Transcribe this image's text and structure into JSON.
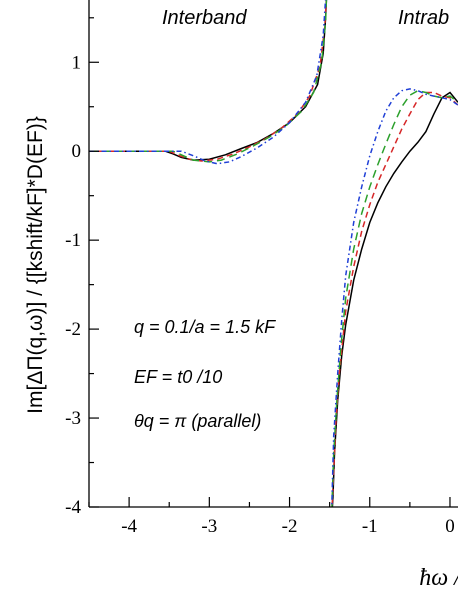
{
  "chart_data": {
    "type": "line",
    "xlim": [
      -4.5,
      0.1
    ],
    "ylim": [
      -4,
      1.7
    ],
    "x_ticks": [
      "-4",
      "-3",
      "-2",
      "-1",
      "0"
    ],
    "y_ticks": [
      "1",
      "0",
      "-1",
      "-2",
      "-3",
      "-4"
    ],
    "ylabel": "Im[ΔΠ(q,ω)] / {[kshift/kF]*D(EF)}",
    "xlabel": "ħω /",
    "annotations": {
      "interband": "Interband",
      "intraband": "Intrab",
      "q_line": "q = 0.1/a = 1.5 kF",
      "ef_line": "EF = t0 /10",
      "theta_line": "θq = π (parallel)"
    },
    "grid": false,
    "legend": "none",
    "series": [
      {
        "color": "#000000",
        "dash": "solid",
        "x": [
          -4.5,
          -3.55,
          -3.45,
          -3.35,
          -3.2,
          -3.0,
          -2.8,
          -2.6,
          -2.4,
          -2.2,
          -2.0,
          -1.8,
          -1.65,
          -1.58,
          -1.55,
          -1.53,
          -1.52
        ],
        "y": [
          0,
          0,
          -0.03,
          -0.07,
          -0.1,
          -0.09,
          -0.04,
          0.03,
          0.1,
          0.2,
          0.32,
          0.5,
          0.75,
          1.1,
          1.5,
          1.9,
          2.5
        ],
        "x2": [
          -1.48,
          -1.46,
          -1.44,
          -1.4,
          -1.35,
          -1.3,
          -1.2,
          -1.1,
          -1.0,
          -0.9,
          -0.8,
          -0.7,
          -0.6,
          -0.5,
          -0.4,
          -0.3,
          -0.2,
          -0.1,
          0.0,
          0.1
        ],
        "y2": [
          -4.2,
          -3.9,
          -3.4,
          -2.8,
          -2.3,
          -1.95,
          -1.45,
          -1.1,
          -0.8,
          -0.58,
          -0.4,
          -0.25,
          -0.12,
          0.0,
          0.1,
          0.22,
          0.42,
          0.6,
          0.66,
          0.55
        ]
      },
      {
        "color": "#d62728",
        "dash": "6,4",
        "x": [
          -4.5,
          -3.5,
          -3.4,
          -3.25,
          -3.1,
          -2.9,
          -2.7,
          -2.5,
          -2.3,
          -2.1,
          -1.9,
          -1.75,
          -1.62,
          -1.56,
          -1.53,
          -1.52
        ],
        "y": [
          0,
          0,
          -0.04,
          -0.09,
          -0.11,
          -0.09,
          -0.03,
          0.05,
          0.14,
          0.26,
          0.42,
          0.62,
          0.95,
          1.4,
          1.9,
          2.5
        ],
        "x2": [
          -1.48,
          -1.45,
          -1.42,
          -1.38,
          -1.3,
          -1.2,
          -1.1,
          -1.0,
          -0.9,
          -0.8,
          -0.7,
          -0.6,
          -0.5,
          -0.4,
          -0.3,
          -0.2,
          -0.1,
          0.0,
          0.1
        ],
        "y2": [
          -4.2,
          -3.6,
          -3.0,
          -2.5,
          -1.8,
          -1.3,
          -0.9,
          -0.6,
          -0.35,
          -0.15,
          0.05,
          0.25,
          0.42,
          0.58,
          0.66,
          0.66,
          0.62,
          0.6,
          0.52
        ]
      },
      {
        "color": "#2ca02c",
        "dash": "8,5",
        "x": [
          -4.5,
          -3.45,
          -3.35,
          -3.2,
          -3.0,
          -2.85,
          -2.65,
          -2.45,
          -2.25,
          -2.05,
          -1.85,
          -1.7,
          -1.6,
          -1.55,
          -1.53,
          -1.52
        ],
        "y": [
          0,
          0,
          -0.04,
          -0.1,
          -0.12,
          -0.1,
          -0.03,
          0.06,
          0.16,
          0.28,
          0.45,
          0.66,
          1.0,
          1.45,
          1.95,
          2.5
        ],
        "x2": [
          -1.48,
          -1.45,
          -1.41,
          -1.36,
          -1.3,
          -1.2,
          -1.1,
          -1.0,
          -0.9,
          -0.8,
          -0.7,
          -0.6,
          -0.5,
          -0.4,
          -0.3,
          -0.2,
          -0.1,
          0.0,
          0.1
        ],
        "y2": [
          -4.2,
          -3.4,
          -2.8,
          -2.2,
          -1.65,
          -1.1,
          -0.7,
          -0.4,
          -0.15,
          0.08,
          0.3,
          0.5,
          0.63,
          0.68,
          0.66,
          0.62,
          0.6,
          0.62,
          0.55
        ]
      },
      {
        "color": "#1f3fd6",
        "dash": "5,3,1.5,3",
        "x": [
          -4.5,
          -3.35,
          -3.2,
          -3.05,
          -2.9,
          -2.75,
          -2.6,
          -2.4,
          -2.2,
          -2.0,
          -1.8,
          -1.66,
          -1.58,
          -1.54,
          -1.52
        ],
        "y": [
          0,
          0,
          -0.05,
          -0.11,
          -0.14,
          -0.12,
          -0.06,
          0.04,
          0.16,
          0.32,
          0.55,
          0.85,
          1.3,
          1.85,
          2.5
        ],
        "x2": [
          -1.48,
          -1.45,
          -1.4,
          -1.35,
          -1.3,
          -1.2,
          -1.1,
          -1.0,
          -0.9,
          -0.8,
          -0.7,
          -0.6,
          -0.5,
          -0.4,
          -0.3,
          -0.2,
          -0.1,
          0.0,
          0.1
        ],
        "y2": [
          -4.2,
          -3.2,
          -2.5,
          -1.9,
          -1.4,
          -0.8,
          -0.4,
          -0.05,
          0.22,
          0.45,
          0.6,
          0.68,
          0.7,
          0.68,
          0.64,
          0.62,
          0.6,
          0.58,
          0.52
        ]
      }
    ]
  }
}
